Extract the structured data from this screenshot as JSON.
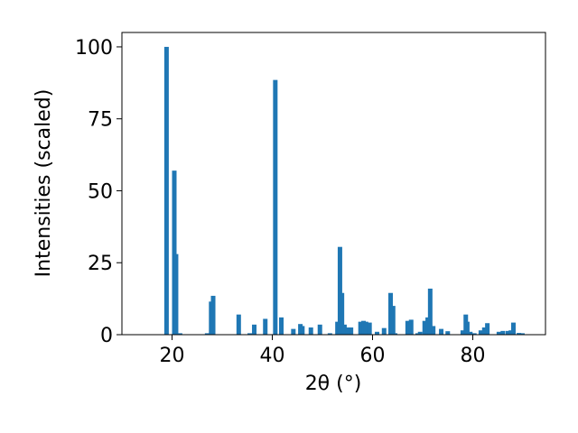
{
  "chart_data": {
    "type": "bar",
    "xlabel": "2θ (°)",
    "ylabel": "Intensities (scaled)",
    "color": "#1f77b4",
    "x": [
      18.9,
      20.45,
      20.8,
      21.6,
      27.0,
      27.8,
      28.2,
      33.3,
      35.5,
      36.4,
      38.6,
      40.6,
      41.8,
      44.2,
      45.6,
      46.0,
      47.7,
      49.5,
      51.5,
      53.0,
      53.5,
      53.9,
      54.4,
      55.1,
      55.7,
      57.6,
      58.2,
      58.7,
      59.4,
      60.9,
      62.3,
      63.6,
      64.1,
      64.5,
      67.0,
      67.7,
      69.0,
      69.5,
      70.4,
      71.0,
      71.5,
      72.1,
      73.7,
      75.0,
      78.0,
      78.6,
      78.9,
      79.5,
      80.3,
      81.6,
      82.3,
      82.9,
      85.2,
      86.0,
      87.0,
      87.6,
      88.1,
      89.2,
      89.9
    ],
    "values": [
      100,
      57,
      28,
      0.5,
      0.5,
      11.5,
      13.5,
      7,
      0.5,
      3.5,
      5.5,
      88.5,
      6,
      2,
      3.7,
      3,
      2.5,
      3.5,
      0.5,
      4.5,
      30.5,
      14.5,
      3.5,
      2.5,
      2.5,
      4.5,
      4.8,
      4.5,
      4.2,
      1,
      2.3,
      14.5,
      10,
      0.5,
      4.8,
      5.2,
      0.5,
      1,
      4.8,
      6,
      16,
      3,
      2,
      1.2,
      1.5,
      7,
      4.5,
      1,
      0.5,
      1.5,
      2.5,
      4,
      1,
      1.3,
      1.3,
      1.5,
      4.2,
      0.6,
      0.5
    ],
    "xlim": [
      10,
      94.5
    ],
    "ylim": [
      0,
      105
    ],
    "xticks": [
      20,
      40,
      60,
      80
    ],
    "yticks": [
      0,
      25,
      50,
      75,
      100
    ]
  }
}
